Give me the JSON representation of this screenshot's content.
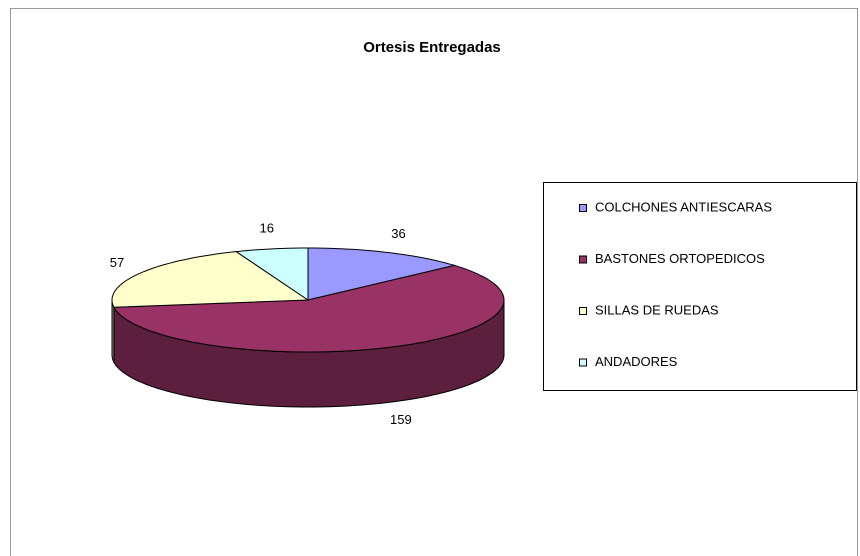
{
  "chart_data": {
    "type": "pie3d",
    "title": "Ortesis Entregadas",
    "categories": [
      "COLCHONES ANTIESCARAS",
      "BASTONES ORTOPEDICOS",
      "SILLAS DE RUEDAS",
      "ANDADORES"
    ],
    "values": [
      36,
      159,
      57,
      16
    ],
    "colors": [
      "#9999ff",
      "#993366",
      "#ffffcc",
      "#ccffff"
    ],
    "legend": "right"
  }
}
